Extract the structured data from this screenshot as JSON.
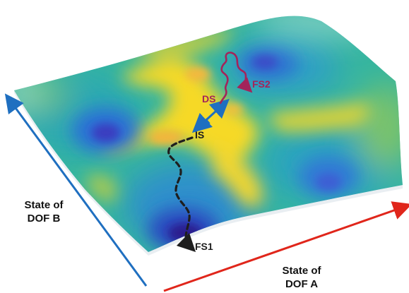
{
  "axes": {
    "a": {
      "line1": "State of",
      "line2": "DOF A",
      "color": "#e0261b"
    },
    "b": {
      "line1": "State of",
      "line2": "DOF B",
      "color": "#1f6fc0"
    }
  },
  "points": {
    "ds": "DS",
    "fs2": "FS2",
    "is": "IS",
    "fs1": "FS1"
  },
  "colors": {
    "dynamic_path": "#a3245a",
    "initial_path": "#1e1e1e",
    "ds_to_is": "#1f6fc0",
    "colormap": "parula"
  }
}
